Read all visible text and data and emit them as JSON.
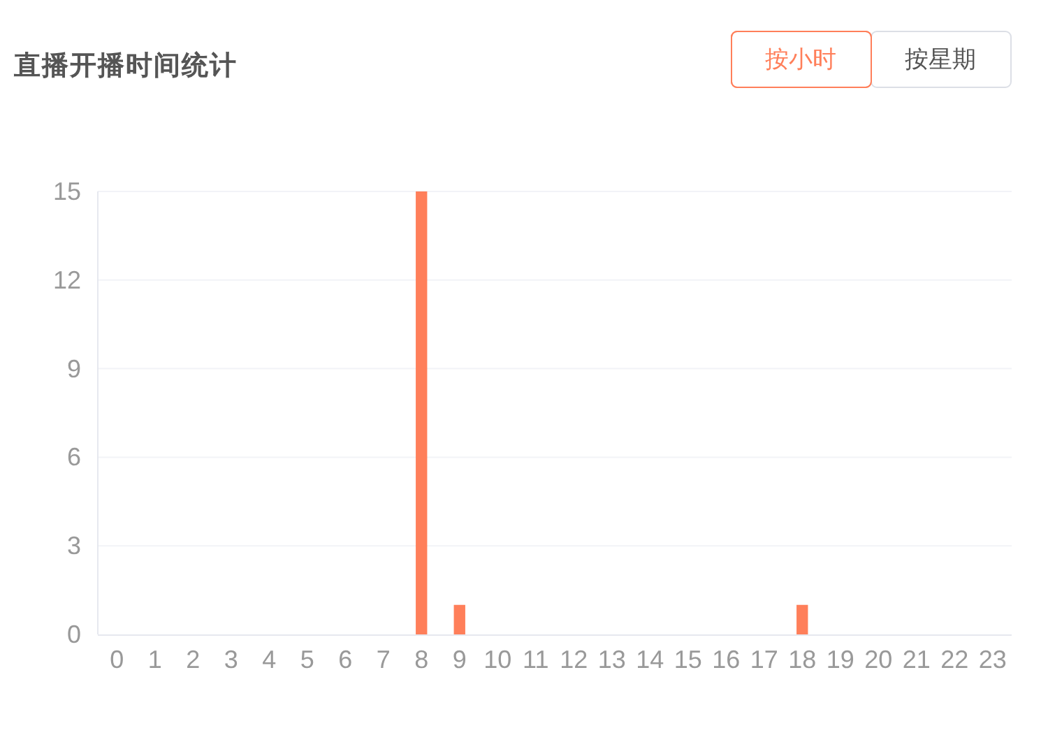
{
  "chart_data": {
    "type": "bar",
    "title": "直播开播时间统计",
    "categories": [
      "0",
      "1",
      "2",
      "3",
      "4",
      "5",
      "6",
      "7",
      "8",
      "9",
      "10",
      "11",
      "12",
      "13",
      "14",
      "15",
      "16",
      "17",
      "18",
      "19",
      "20",
      "21",
      "22",
      "23"
    ],
    "values": [
      0,
      0,
      0,
      0,
      0,
      0,
      0,
      0,
      15,
      1,
      0,
      0,
      0,
      0,
      0,
      0,
      0,
      0,
      1,
      0,
      0,
      0,
      0,
      0
    ],
    "color": "#ff7f5a",
    "ylim": [
      0,
      15
    ],
    "yticks": [
      0,
      3,
      6,
      9,
      12,
      15
    ],
    "grid": "y",
    "annotations": [
      "按小时",
      "按星期"
    ]
  }
}
